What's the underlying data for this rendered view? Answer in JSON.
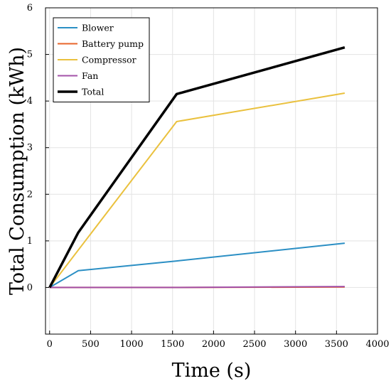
{
  "chart_data": {
    "type": "line",
    "title": "",
    "xlabel": "Time (s)",
    "ylabel": "Total Consumption (kWh)",
    "xlim": [
      -50,
      4000
    ],
    "ylim": [
      -1,
      6
    ],
    "xticks": [
      0,
      500,
      1000,
      1500,
      2000,
      2500,
      3000,
      3500,
      4000
    ],
    "yticks": [
      0,
      1,
      2,
      3,
      4,
      5,
      6
    ],
    "xtick_labels": [
      "0",
      "500",
      "1000",
      "1500",
      "2000",
      "2500",
      "3000",
      "3500",
      "4000"
    ],
    "ytick_labels": [
      "0",
      "1",
      "2",
      "3",
      "4",
      "5",
      "6"
    ],
    "grid": true,
    "legend_position": "top-left",
    "series": [
      {
        "name": "Blower",
        "color": "#2b8fc4",
        "width": 2,
        "x": [
          0,
          350,
          1550,
          3600
        ],
        "y": [
          0,
          0.36,
          0.57,
          0.95
        ]
      },
      {
        "name": "Battery pump",
        "color": "#e8642a",
        "width": 2,
        "x": [
          0,
          1550,
          3600
        ],
        "y": [
          0,
          0.0,
          0.01
        ]
      },
      {
        "name": "Compressor",
        "color": "#eac13e",
        "width": 2,
        "x": [
          0,
          1550,
          3600
        ],
        "y": [
          0,
          3.56,
          4.17
        ]
      },
      {
        "name": "Fan",
        "color": "#a352a8",
        "width": 2,
        "x": [
          0,
          1550,
          3600
        ],
        "y": [
          0,
          0.0,
          0.02
        ]
      },
      {
        "name": "Total",
        "color": "#000000",
        "width": 3.5,
        "x": [
          0,
          350,
          1550,
          3600
        ],
        "y": [
          0,
          1.18,
          4.15,
          5.15
        ]
      }
    ]
  }
}
